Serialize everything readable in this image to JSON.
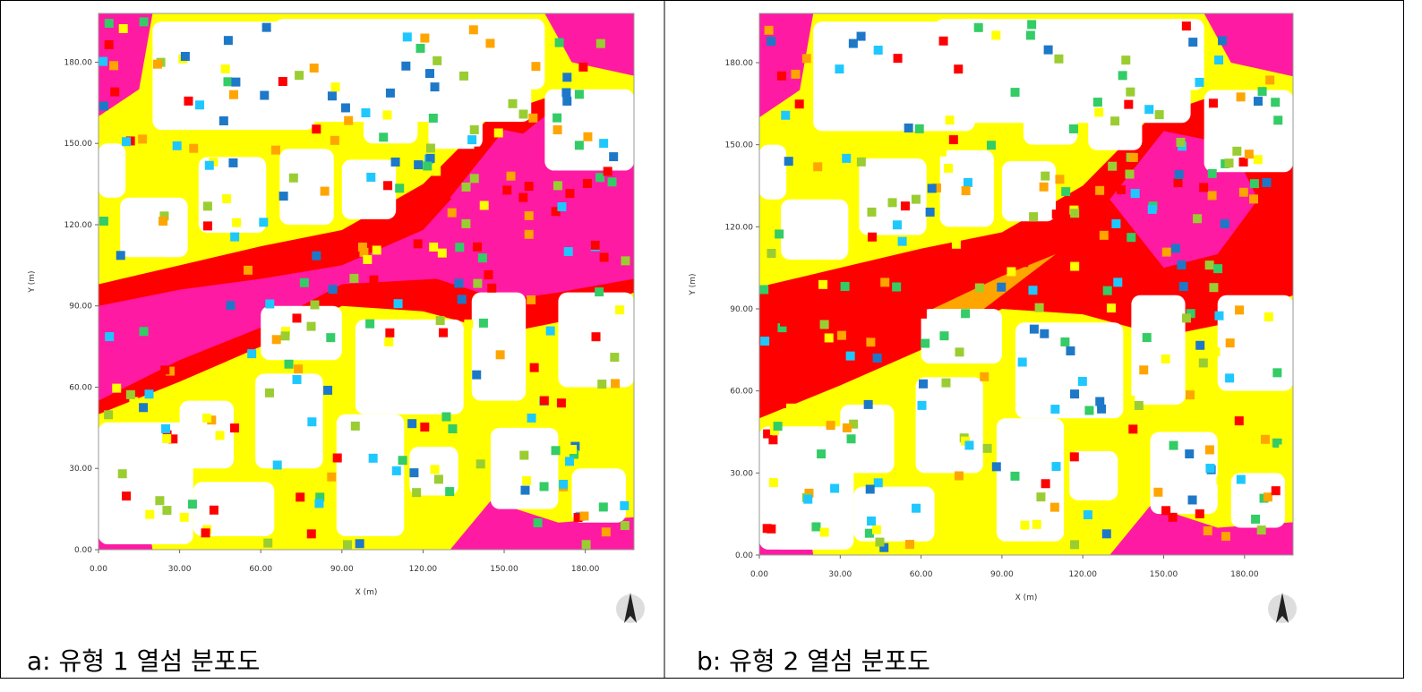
{
  "panels": [
    {
      "y_axis_label": "Y (m)",
      "x_axis_label": "X (m)",
      "yticks": [
        "180.00",
        "150.00",
        "120.00",
        "90.00",
        "60.00",
        "30.00",
        "0.00"
      ],
      "xticks": [
        "0.00",
        "30.00",
        "60.00",
        "90.00",
        "120.00",
        "150.00",
        "180.00"
      ],
      "caption": "a: 유형 1 열섬 분포도"
    },
    {
      "y_axis_label": "Y (m)",
      "x_axis_label": "X (m)",
      "yticks": [
        "180.00",
        "150.00",
        "120.00",
        "90.00",
        "60.00",
        "30.00",
        "0.00"
      ],
      "xticks": [
        "0.00",
        "30.00",
        "60.00",
        "90.00",
        "120.00",
        "150.00",
        "180.00"
      ],
      "caption": "b: 유형 2 열섬 분포도"
    }
  ]
}
